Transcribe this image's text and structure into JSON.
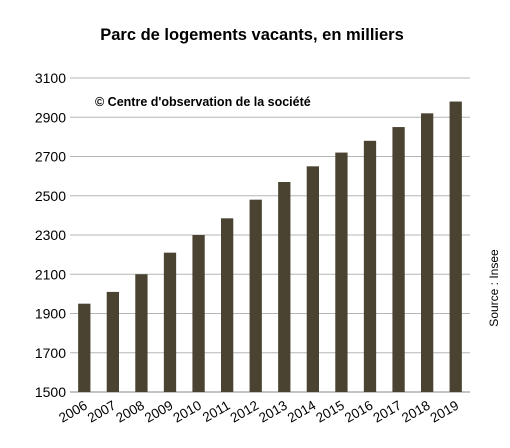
{
  "chart_data": {
    "type": "bar",
    "title": "Parc de logements vacants, en milliers",
    "watermark": "© Centre d'observation de la société",
    "source": "Source : Insee",
    "xlabel": "",
    "ylabel": "",
    "ylim": [
      1500,
      3100
    ],
    "yticks": [
      "1500",
      "1700",
      "1900",
      "2100",
      "2300",
      "2500",
      "2700",
      "2900",
      "3100"
    ],
    "grid": true,
    "bar_color": "#4a4331",
    "categories": [
      "2006",
      "2007",
      "2008",
      "2009",
      "2010",
      "2011",
      "2012",
      "2013",
      "2014",
      "2015",
      "2016",
      "2017",
      "2018",
      "2019"
    ],
    "values": [
      1950,
      2010,
      2100,
      2210,
      2300,
      2385,
      2480,
      2570,
      2650,
      2720,
      2780,
      2850,
      2920,
      2980
    ]
  }
}
